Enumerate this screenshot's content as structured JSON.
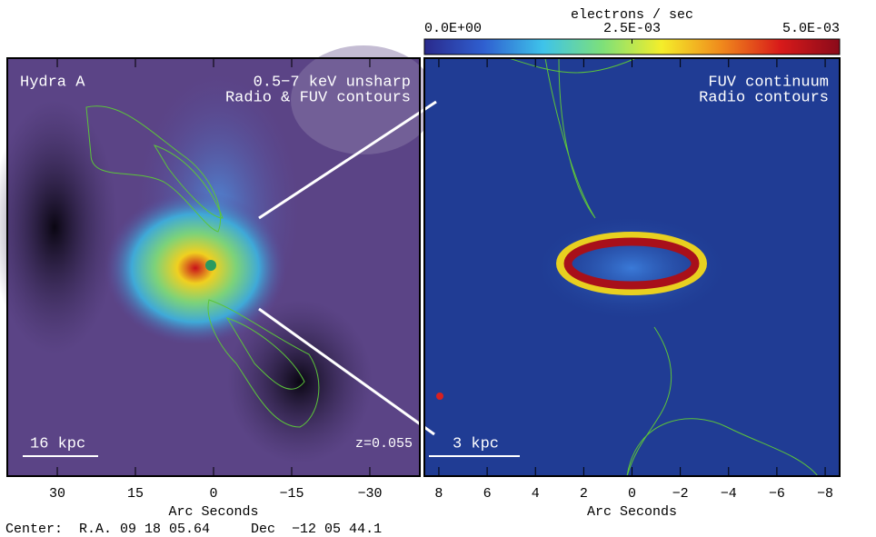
{
  "chart_data": [
    {
      "type": "image",
      "xlabel": "Arc Seconds",
      "xlim": [
        39.6,
        -39.6
      ],
      "xticks": [
        30,
        15,
        0,
        {
          "value": -15,
          "label": "−15"
        },
        {
          "value": -30,
          "label": "−30"
        }
      ],
      "annotations": [
        "Hydra A",
        "0.5−7 keV unsharp",
        "Radio & FUV contours",
        "16 kpc",
        "z=0.055"
      ]
    },
    {
      "type": "image",
      "xlabel": "Arc Seconds",
      "xlim": [
        8.6,
        -8.6
      ],
      "xticks": [
        8,
        6,
        4,
        2,
        0,
        {
          "value": -2,
          "label": "−2"
        },
        {
          "value": -4,
          "label": "−4"
        },
        {
          "value": -6,
          "label": "−6"
        },
        {
          "value": -8,
          "label": "−8"
        }
      ],
      "annotations": [
        "FUV continuum",
        "Radio contours",
        "3 kpc"
      ]
    },
    {
      "type": "colorbar",
      "title": "electrons / sec",
      "xlim": [
        0,
        0.005
      ],
      "xticks": [
        {
          "value": 0,
          "label": "0.0E+00"
        },
        {
          "value": 0.0025,
          "label": "2.5E-03"
        },
        {
          "value": 0.005,
          "label": "5.0E-03"
        }
      ],
      "colors": [
        "#2a2a8c",
        "#2f5fd0",
        "#3ec3ea",
        "#7de07a",
        "#f4ee2a",
        "#f08a1c",
        "#d81a1a",
        "#8a0a1a"
      ]
    }
  ],
  "caption": "Center:  R.A. 09 18 05.64     Dec  −12 05 44.1"
}
